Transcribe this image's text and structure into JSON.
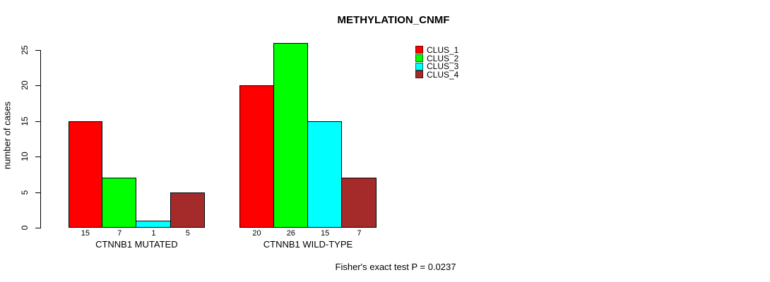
{
  "chart_data": {
    "type": "bar",
    "title": "METHYLATION_CNMF",
    "ylabel": "number of cases",
    "xlabel": "",
    "categories": [
      "CTNNB1 MUTATED",
      "CTNNB1 WILD-TYPE"
    ],
    "series": [
      {
        "name": "CLUS_1",
        "color": "#FF0000",
        "values": [
          15,
          20
        ]
      },
      {
        "name": "CLUS_2",
        "color": "#00FF00",
        "values": [
          7,
          26
        ]
      },
      {
        "name": "CLUS_3",
        "color": "#00FFFF",
        "values": [
          1,
          15
        ]
      },
      {
        "name": "CLUS_4",
        "color": "#A52A2A",
        "values": [
          5,
          7
        ]
      }
    ],
    "yticks": [
      0,
      5,
      10,
      15,
      20,
      25
    ],
    "ylim": [
      0,
      26
    ],
    "grid": false,
    "legend_position": "top-right",
    "bar_value_labels_shown": true,
    "annotation": "Fisher's exact test P = 0.0237"
  }
}
